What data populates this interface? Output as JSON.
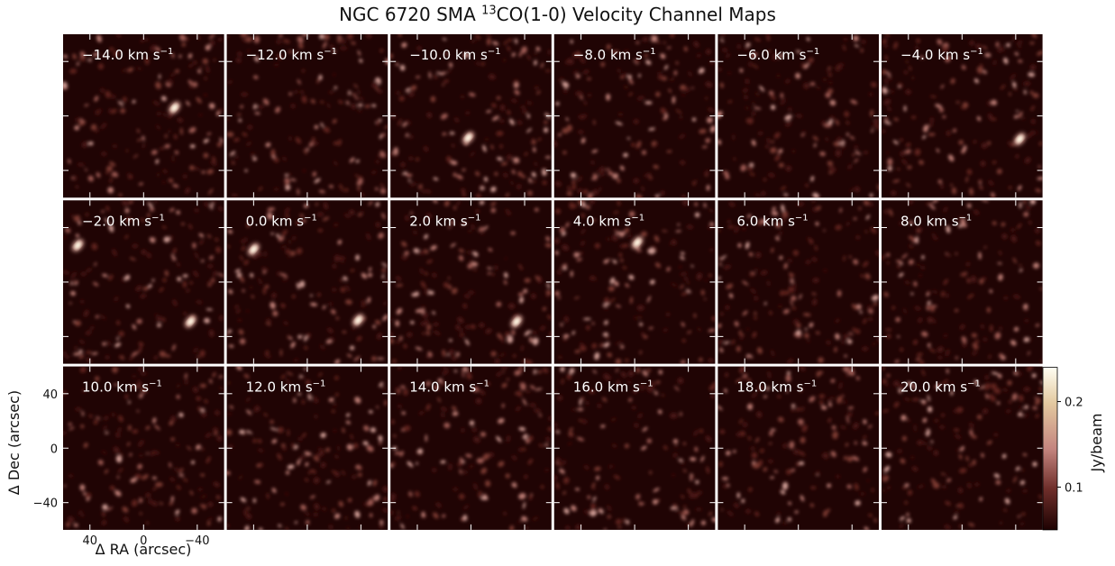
{
  "figure": {
    "title_main": "NGC 6720 SMA ",
    "title_sup": "13",
    "title_rest": "CO(1-0) Velocity Channel Maps",
    "xlabel": "Δ RA (arcsec)",
    "ylabel": "Δ Dec (arcsec)",
    "colorbar_label": "Jy/beam"
  },
  "chart_data": {
    "type": "heatmap",
    "title": "NGC 6720 SMA 13CO(1-0) Velocity Channel Maps",
    "xlabel": "Δ RA (arcsec)",
    "ylabel": "Δ Dec (arcsec)",
    "unit_suffix": " km s",
    "unit_exp": "−1",
    "channels": [
      "−14.0",
      "−12.0",
      "−10.0",
      "−8.0",
      "−6.0",
      "−4.0",
      "−2.0",
      "0.0",
      "2.0",
      "4.0",
      "6.0",
      "8.0",
      "10.0",
      "12.0",
      "14.0",
      "16.0",
      "18.0",
      "20.0"
    ],
    "grid": {
      "rows": 3,
      "cols": 6
    },
    "xlim": [
      60,
      -60
    ],
    "ylim": [
      -60,
      60
    ],
    "xticks": [
      40,
      0,
      -40
    ],
    "xtick_labels": [
      "40",
      "0",
      "−40"
    ],
    "yticks": [
      40,
      0,
      -40
    ],
    "ytick_labels": [
      "40",
      "0",
      "−40"
    ],
    "colorbar": {
      "min": 0.05,
      "max": 0.24,
      "ticks": [
        0.1,
        0.2
      ],
      "tick_labels": [
        "0.1",
        "0.2"
      ]
    },
    "bright_features": [
      {
        "channel": "−10.0",
        "ra": 2,
        "dec": -16
      },
      {
        "channel": "−14.0",
        "ra": -23,
        "dec": 6
      },
      {
        "channel": "−4.0",
        "ra": -43,
        "dec": -17
      },
      {
        "channel": "−2.0",
        "ra": 49,
        "dec": 27
      },
      {
        "channel": "−2.0",
        "ra": -35,
        "dec": -29
      },
      {
        "channel": "0.0",
        "ra": 40,
        "dec": 24
      },
      {
        "channel": "0.0",
        "ra": -38,
        "dec": -28
      },
      {
        "channel": "2.0",
        "ra": -34,
        "dec": -29
      },
      {
        "channel": "4.0",
        "ra": -2,
        "dec": 29
      }
    ],
    "colors": {
      "background": "#200404",
      "low": "#5a1f1a",
      "mid": "#c78d88",
      "high": "#fffbe6"
    }
  }
}
